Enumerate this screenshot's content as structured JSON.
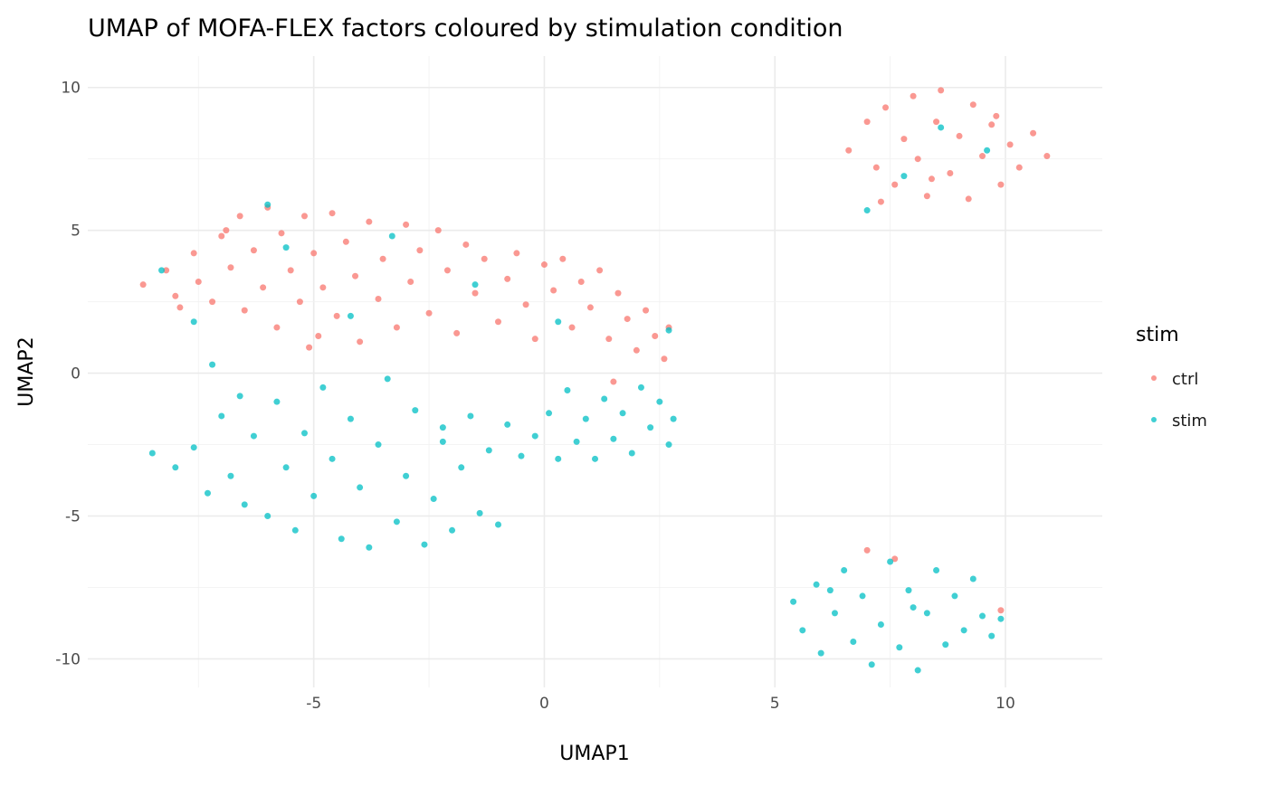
{
  "chart_data": {
    "type": "scatter",
    "title": "UMAP of MOFA-FLEX factors coloured by stimulation condition",
    "xlabel": "UMAP1",
    "ylabel": "UMAP2",
    "xlim": [
      -9.9,
      12.1
    ],
    "ylim": [
      -11.0,
      11.1
    ],
    "xticks": [
      -5,
      0,
      5,
      10
    ],
    "yticks": [
      -10,
      -5,
      0,
      5,
      10
    ],
    "xtick_labels": [
      "-5",
      "0",
      "5",
      "10"
    ],
    "ytick_labels": [
      "-10",
      "-5",
      "0",
      "5",
      "10"
    ],
    "grid": true,
    "legend": {
      "title": "stim",
      "placement": "right"
    },
    "series": [
      {
        "name": "ctrl",
        "color": "#F8766D",
        "points": [
          [
            -8.7,
            3.1
          ],
          [
            -8.2,
            3.6
          ],
          [
            -8.0,
            2.7
          ],
          [
            -7.6,
            4.2
          ],
          [
            -7.5,
            3.2
          ],
          [
            -7.2,
            2.5
          ],
          [
            -7.0,
            4.8
          ],
          [
            -6.8,
            3.7
          ],
          [
            -6.6,
            5.5
          ],
          [
            -6.5,
            2.2
          ],
          [
            -6.3,
            4.3
          ],
          [
            -6.1,
            3.0
          ],
          [
            -6.0,
            5.8
          ],
          [
            -5.8,
            1.6
          ],
          [
            -5.7,
            4.9
          ],
          [
            -5.5,
            3.6
          ],
          [
            -5.3,
            2.5
          ],
          [
            -5.2,
            5.5
          ],
          [
            -5.0,
            4.2
          ],
          [
            -4.9,
            1.3
          ],
          [
            -4.8,
            3.0
          ],
          [
            -4.6,
            5.6
          ],
          [
            -4.5,
            2.0
          ],
          [
            -4.3,
            4.6
          ],
          [
            -4.1,
            3.4
          ],
          [
            -4.0,
            1.1
          ],
          [
            -3.8,
            5.3
          ],
          [
            -3.6,
            2.6
          ],
          [
            -3.5,
            4.0
          ],
          [
            -3.2,
            1.6
          ],
          [
            -3.0,
            5.2
          ],
          [
            -2.9,
            3.2
          ],
          [
            -2.7,
            4.3
          ],
          [
            -2.5,
            2.1
          ],
          [
            -2.3,
            5.0
          ],
          [
            -2.1,
            3.6
          ],
          [
            -1.9,
            1.4
          ],
          [
            -1.7,
            4.5
          ],
          [
            -1.5,
            2.8
          ],
          [
            -1.3,
            4.0
          ],
          [
            -1.0,
            1.8
          ],
          [
            -0.8,
            3.3
          ],
          [
            -0.6,
            4.2
          ],
          [
            -0.4,
            2.4
          ],
          [
            -0.2,
            1.2
          ],
          [
            0.0,
            3.8
          ],
          [
            0.2,
            2.9
          ],
          [
            0.4,
            4.0
          ],
          [
            0.6,
            1.6
          ],
          [
            0.8,
            3.2
          ],
          [
            1.0,
            2.3
          ],
          [
            1.2,
            3.6
          ],
          [
            1.4,
            1.2
          ],
          [
            1.6,
            2.8
          ],
          [
            1.8,
            1.9
          ],
          [
            2.0,
            0.8
          ],
          [
            2.2,
            2.2
          ],
          [
            2.4,
            1.3
          ],
          [
            2.6,
            0.5
          ],
          [
            2.7,
            1.6
          ],
          [
            1.5,
            -0.3
          ],
          [
            -6.9,
            5.0
          ],
          [
            -7.9,
            2.3
          ],
          [
            -5.1,
            0.9
          ],
          [
            6.6,
            7.8
          ],
          [
            7.0,
            8.8
          ],
          [
            7.2,
            7.2
          ],
          [
            7.4,
            9.3
          ],
          [
            7.6,
            6.6
          ],
          [
            7.8,
            8.2
          ],
          [
            8.0,
            9.7
          ],
          [
            8.1,
            7.5
          ],
          [
            8.3,
            6.2
          ],
          [
            8.5,
            8.8
          ],
          [
            8.6,
            9.9
          ],
          [
            8.8,
            7.0
          ],
          [
            9.0,
            8.3
          ],
          [
            9.2,
            6.1
          ],
          [
            9.3,
            9.4
          ],
          [
            9.5,
            7.6
          ],
          [
            9.7,
            8.7
          ],
          [
            9.9,
            6.6
          ],
          [
            10.1,
            8.0
          ],
          [
            10.3,
            7.2
          ],
          [
            10.6,
            8.4
          ],
          [
            10.9,
            7.6
          ],
          [
            7.3,
            6.0
          ],
          [
            8.4,
            6.8
          ],
          [
            9.8,
            9.0
          ],
          [
            7.0,
            -6.2
          ],
          [
            9.9,
            -8.3
          ],
          [
            7.6,
            -6.5
          ]
        ]
      },
      {
        "name": "stim",
        "color": "#00BFC4",
        "points": [
          [
            -8.5,
            -2.8
          ],
          [
            -8.0,
            -3.3
          ],
          [
            -7.6,
            -2.6
          ],
          [
            -7.3,
            -4.2
          ],
          [
            -7.0,
            -1.5
          ],
          [
            -6.8,
            -3.6
          ],
          [
            -6.5,
            -4.6
          ],
          [
            -6.3,
            -2.2
          ],
          [
            -6.0,
            -5.0
          ],
          [
            -5.8,
            -1.0
          ],
          [
            -5.6,
            -3.3
          ],
          [
            -5.4,
            -5.5
          ],
          [
            -5.2,
            -2.1
          ],
          [
            -5.0,
            -4.3
          ],
          [
            -4.8,
            -0.5
          ],
          [
            -4.6,
            -3.0
          ],
          [
            -4.4,
            -5.8
          ],
          [
            -4.2,
            -1.6
          ],
          [
            -4.0,
            -4.0
          ],
          [
            -3.8,
            -6.1
          ],
          [
            -3.6,
            -2.5
          ],
          [
            -3.4,
            -0.2
          ],
          [
            -3.2,
            -5.2
          ],
          [
            -3.0,
            -3.6
          ],
          [
            -2.8,
            -1.3
          ],
          [
            -2.6,
            -6.0
          ],
          [
            -2.4,
            -4.4
          ],
          [
            -2.2,
            -2.4
          ],
          [
            -2.0,
            -5.5
          ],
          [
            -1.8,
            -3.3
          ],
          [
            -1.6,
            -1.5
          ],
          [
            -1.4,
            -4.9
          ],
          [
            -1.2,
            -2.7
          ],
          [
            -1.0,
            -5.3
          ],
          [
            -0.8,
            -1.8
          ],
          [
            -0.5,
            -2.9
          ],
          [
            -0.2,
            -2.2
          ],
          [
            0.1,
            -1.4
          ],
          [
            0.3,
            -3.0
          ],
          [
            0.5,
            -0.6
          ],
          [
            0.7,
            -2.4
          ],
          [
            0.9,
            -1.6
          ],
          [
            1.1,
            -3.0
          ],
          [
            1.3,
            -0.9
          ],
          [
            1.5,
            -2.3
          ],
          [
            1.7,
            -1.4
          ],
          [
            1.9,
            -2.8
          ],
          [
            2.1,
            -0.5
          ],
          [
            2.3,
            -1.9
          ],
          [
            2.5,
            -1.0
          ],
          [
            2.7,
            -2.5
          ],
          [
            2.8,
            -1.6
          ],
          [
            -7.2,
            0.3
          ],
          [
            -6.6,
            -0.8
          ],
          [
            -8.3,
            3.6
          ],
          [
            -6.0,
            5.9
          ],
          [
            -4.2,
            2.0
          ],
          [
            -3.3,
            4.8
          ],
          [
            -1.5,
            3.1
          ],
          [
            0.3,
            1.8
          ],
          [
            2.7,
            1.5
          ],
          [
            -5.6,
            4.4
          ],
          [
            -7.6,
            1.8
          ],
          [
            -2.2,
            -1.9
          ],
          [
            5.4,
            -8.0
          ],
          [
            5.6,
            -9.0
          ],
          [
            5.9,
            -7.4
          ],
          [
            6.0,
            -9.8
          ],
          [
            6.3,
            -8.4
          ],
          [
            6.5,
            -6.9
          ],
          [
            6.7,
            -9.4
          ],
          [
            6.9,
            -7.8
          ],
          [
            7.1,
            -10.2
          ],
          [
            7.3,
            -8.8
          ],
          [
            7.5,
            -6.6
          ],
          [
            7.7,
            -9.6
          ],
          [
            7.9,
            -7.6
          ],
          [
            8.1,
            -10.4
          ],
          [
            8.3,
            -8.4
          ],
          [
            8.5,
            -6.9
          ],
          [
            8.7,
            -9.5
          ],
          [
            8.9,
            -7.8
          ],
          [
            9.1,
            -9.0
          ],
          [
            9.3,
            -7.2
          ],
          [
            9.5,
            -8.5
          ],
          [
            9.7,
            -9.2
          ],
          [
            9.9,
            -8.6
          ],
          [
            6.2,
            -7.6
          ],
          [
            8.0,
            -8.2
          ],
          [
            7.8,
            6.9
          ],
          [
            8.6,
            8.6
          ],
          [
            7.0,
            5.7
          ],
          [
            9.6,
            7.8
          ]
        ]
      }
    ]
  }
}
